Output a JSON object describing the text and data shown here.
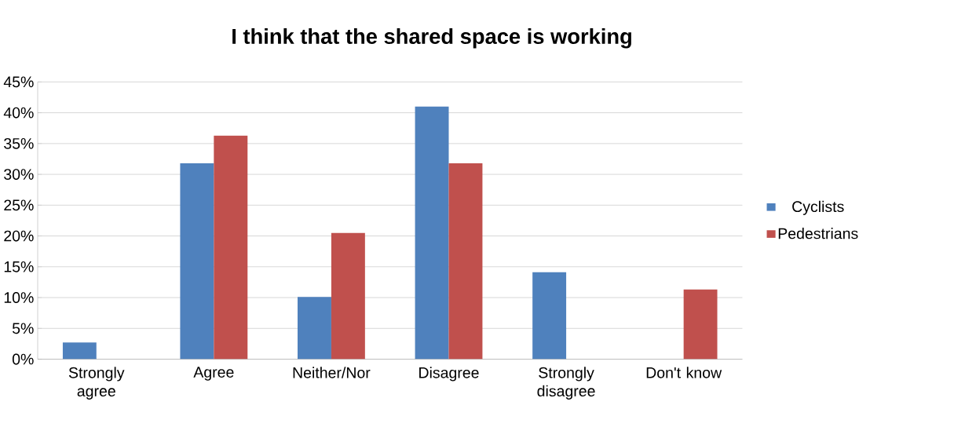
{
  "chart_data": {
    "type": "bar",
    "title": "I think that the shared space is working",
    "categories": [
      "Strongly agree",
      "Agree",
      "Neither/Nor",
      "Disagree",
      "Strongly disagree",
      "Don't know"
    ],
    "series": [
      {
        "name": "Cyclists",
        "color": "#4f81bd",
        "values": [
          2.7,
          31.8,
          10.1,
          41.0,
          14.1,
          0
        ]
      },
      {
        "name": "Pedestrians",
        "color": "#c0504d",
        "values": [
          0,
          36.3,
          20.5,
          31.8,
          0,
          11.3
        ]
      }
    ],
    "ylim": [
      0,
      45
    ],
    "yticks": [
      {
        "value": 0,
        "label": "0%"
      },
      {
        "value": 5,
        "label": "5%"
      },
      {
        "value": 10,
        "label": "10%"
      },
      {
        "value": 15,
        "label": "15%"
      },
      {
        "value": 20,
        "label": "20%"
      },
      {
        "value": 25,
        "label": "25%"
      },
      {
        "value": 30,
        "label": "30%"
      },
      {
        "value": 35,
        "label": "35%"
      },
      {
        "value": 40,
        "label": "40%"
      },
      {
        "value": 45,
        "label": "45%"
      }
    ],
    "grid": "y",
    "legend": "right"
  }
}
